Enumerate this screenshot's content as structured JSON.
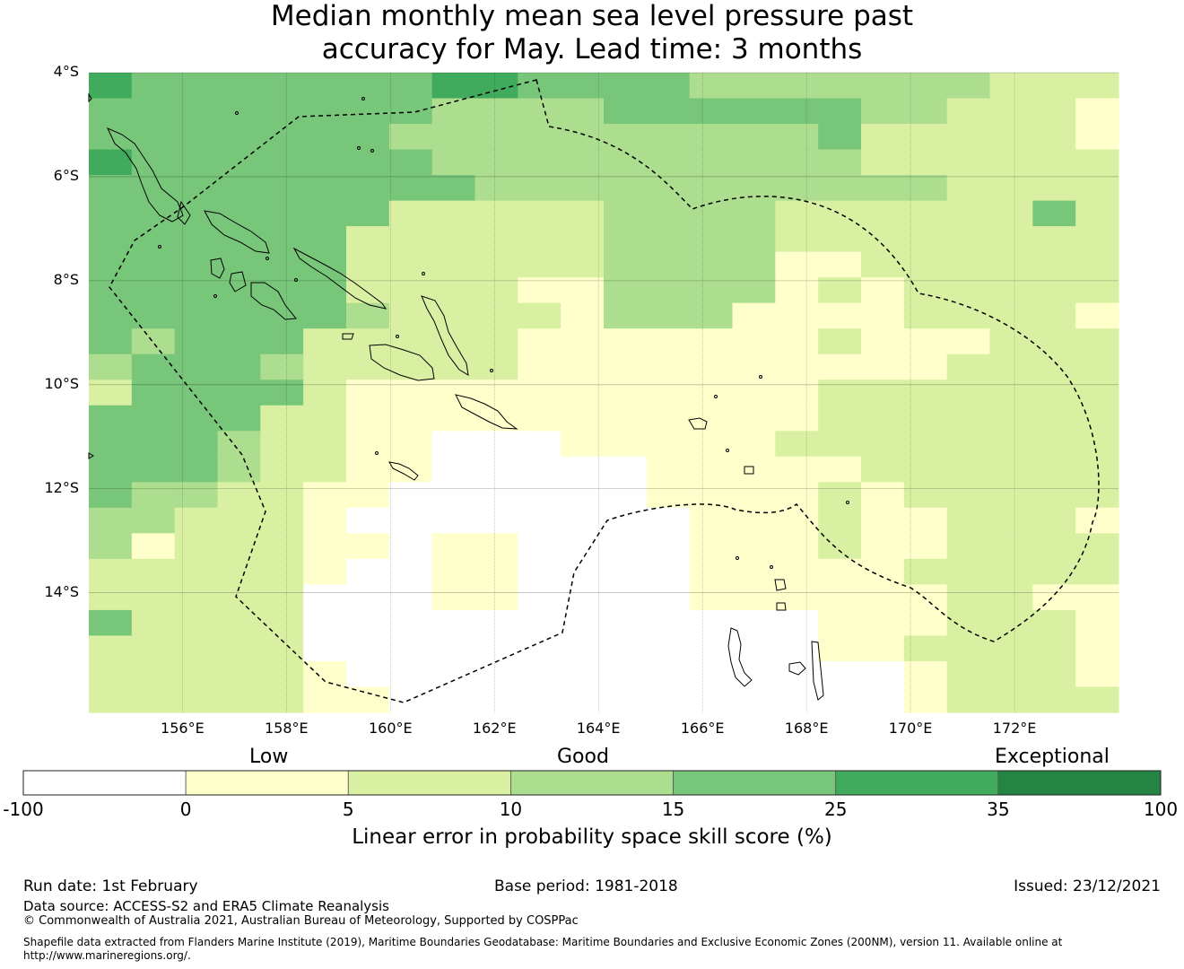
{
  "title": {
    "line1": "Median monthly mean sea level pressure past",
    "line2": "accuracy for May. Lead time: 3 months"
  },
  "map": {
    "lat_labels": [
      "4°S",
      "6°S",
      "8°S",
      "10°S",
      "12°S",
      "14°S"
    ],
    "lon_labels": [
      "156°E",
      "158°E",
      "160°E",
      "162°E",
      "164°E",
      "166°E",
      "168°E",
      "170°E",
      "172°E"
    ],
    "lat_values": [
      -4,
      -6,
      -8,
      -10,
      -12,
      -14
    ],
    "lon_values": [
      156,
      158,
      160,
      162,
      164,
      166,
      168,
      170,
      172
    ],
    "extent": {
      "lon_min": 154.2,
      "lon_max": 174.0,
      "lat_min": -16.3,
      "lat_max": -4.0
    },
    "gridlines": true,
    "eez_boundary": "dashed",
    "land_outline": "solid"
  },
  "colorbar": {
    "categories": [
      "Low",
      "Good",
      "Exceptional"
    ],
    "ticks": [
      "-100",
      "0",
      "5",
      "10",
      "15",
      "25",
      "35",
      "100"
    ],
    "colors": [
      "#ffffff",
      "#ffffcc",
      "#d9f0a3",
      "#addd8e",
      "#78c679",
      "#41ab5d",
      "#238443"
    ],
    "label": "Linear error in probability space skill score (%)"
  },
  "footer": {
    "run_date": "Run date: 1st February",
    "base_period": "Base period: 1981-2018",
    "issued": "Issued: 23/12/2021",
    "data_source": "Data source: ACCESS-S2 and ERA5 Climate Reanalysis",
    "copyright": "© Commonwealth of Australia 2021, Australian Bureau of Meteorology, Supported by COSPPac",
    "shapefile_line1": "Shapefile data extracted from Flanders Marine Institute (2019), Maritime Boundaries Geodatabase: Maritime Boundaries and Exclusive Economic Zones (200NM), version 11. Available online at",
    "shapefile_line2": "http://www.marineregions.org/."
  }
}
